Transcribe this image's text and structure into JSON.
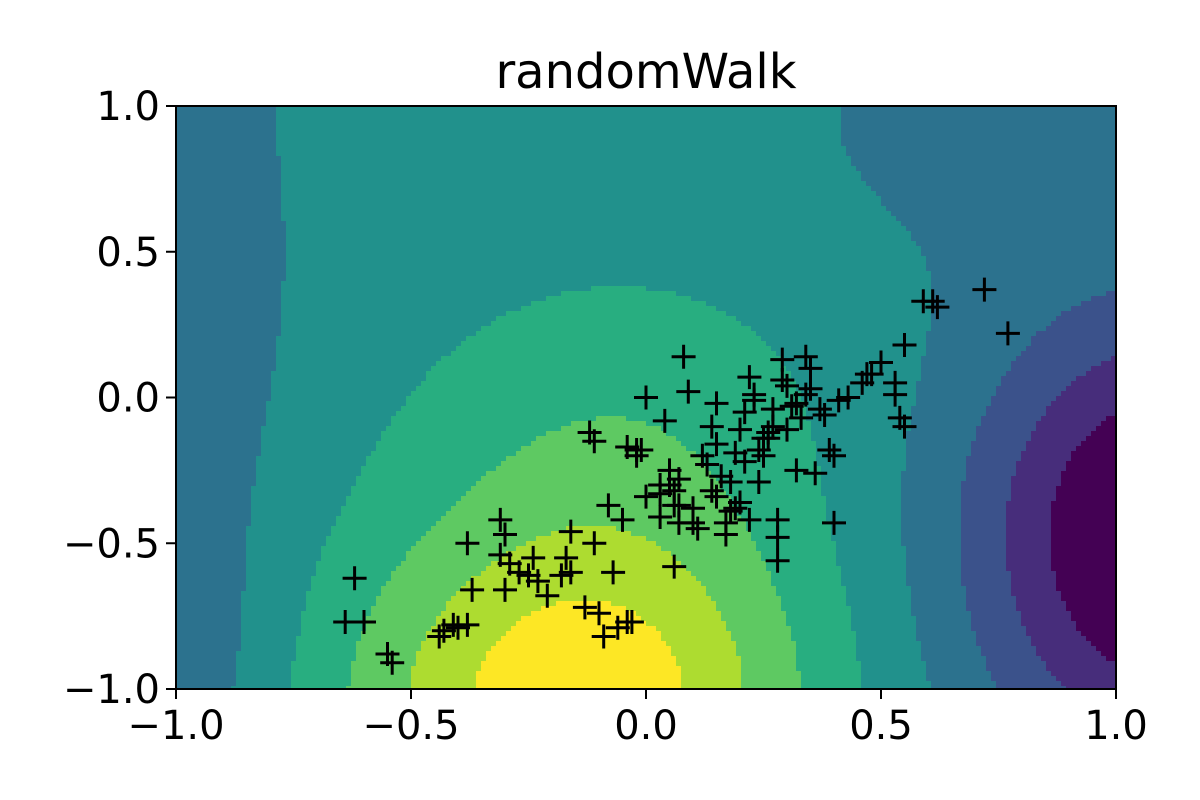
{
  "chart_data": {
    "type": "contour",
    "title": "randomWalk",
    "xlabel": "",
    "ylabel": "",
    "xlim": [
      -1.0,
      1.0
    ],
    "ylim": [
      -1.0,
      1.0
    ],
    "x_ticks": [
      "−1.0",
      "−0.5",
      "0.0",
      "0.5",
      "1.0"
    ],
    "y_ticks": [
      "−1.0",
      "−0.5",
      "0.0",
      "0.5",
      "1.0"
    ],
    "x_tick_values": [
      -1.0,
      -0.5,
      0.0,
      0.5,
      1.0
    ],
    "y_tick_values": [
      -1.0,
      -0.5,
      0.0,
      0.5,
      1.0
    ],
    "grid": false,
    "colormap": "viridis",
    "contour_levels": 9,
    "palette": [
      "#440154",
      "#472d7b",
      "#3b528b",
      "#2c728e",
      "#21918c",
      "#28ae80",
      "#5ec962",
      "#addc30",
      "#fde725"
    ],
    "marker": "+",
    "marker_color": "#000000",
    "points": [
      [
        -0.62,
        -0.62
      ],
      [
        -0.64,
        -0.77
      ],
      [
        -0.6,
        -0.77
      ],
      [
        -0.55,
        -0.88
      ],
      [
        -0.54,
        -0.91
      ],
      [
        -0.43,
        -0.8
      ],
      [
        -0.41,
        -0.78
      ],
      [
        -0.4,
        -0.79
      ],
      [
        -0.38,
        -0.78
      ],
      [
        -0.37,
        -0.66
      ],
      [
        -0.38,
        -0.5
      ],
      [
        -0.31,
        -0.42
      ],
      [
        -0.3,
        -0.47
      ],
      [
        -0.31,
        -0.54
      ],
      [
        -0.29,
        -0.57
      ],
      [
        -0.3,
        -0.66
      ],
      [
        -0.27,
        -0.6
      ],
      [
        -0.25,
        -0.61
      ],
      [
        -0.23,
        -0.63
      ],
      [
        -0.24,
        -0.55
      ],
      [
        -0.21,
        -0.68
      ],
      [
        -0.18,
        -0.61
      ],
      [
        -0.17,
        -0.55
      ],
      [
        -0.16,
        -0.6
      ],
      [
        -0.16,
        -0.46
      ],
      [
        -0.13,
        -0.72
      ],
      [
        -0.11,
        -0.5
      ],
      [
        -0.1,
        -0.74
      ],
      [
        -0.09,
        -0.82
      ],
      [
        -0.07,
        -0.6
      ],
      [
        -0.06,
        -0.79
      ],
      [
        -0.03,
        -0.77
      ],
      [
        -0.08,
        -0.37
      ],
      [
        -0.05,
        -0.42
      ],
      [
        -0.04,
        -0.17
      ],
      [
        -0.02,
        -0.2
      ],
      [
        -0.01,
        -0.18
      ],
      [
        0.0,
        -0.34
      ],
      [
        0.03,
        -0.33
      ],
      [
        0.03,
        -0.41
      ],
      [
        -0.12,
        -0.12
      ],
      [
        -0.11,
        -0.15
      ],
      [
        -0.02,
        -0.18
      ],
      [
        0.0,
        0.0
      ],
      [
        0.04,
        -0.08
      ],
      [
        0.05,
        -0.25
      ],
      [
        0.05,
        -0.3
      ],
      [
        0.06,
        -0.32
      ],
      [
        0.07,
        -0.28
      ],
      [
        0.07,
        -0.37
      ],
      [
        0.07,
        -0.43
      ],
      [
        0.08,
        0.14
      ],
      [
        0.09,
        0.02
      ],
      [
        0.1,
        -0.38
      ],
      [
        0.11,
        -0.45
      ],
      [
        0.12,
        -0.2
      ],
      [
        0.13,
        -0.23
      ],
      [
        0.14,
        -0.32
      ],
      [
        0.14,
        -0.1
      ],
      [
        0.15,
        -0.16
      ],
      [
        0.15,
        -0.02
      ],
      [
        0.16,
        -0.27
      ],
      [
        0.17,
        -0.43
      ],
      [
        0.17,
        -0.47
      ],
      [
        0.18,
        -0.39
      ],
      [
        0.19,
        -0.38
      ],
      [
        0.19,
        -0.19
      ],
      [
        0.2,
        -0.11
      ],
      [
        0.2,
        -0.36
      ],
      [
        0.21,
        -0.22
      ],
      [
        0.21,
        -0.05
      ],
      [
        0.22,
        0.07
      ],
      [
        0.23,
        -0.01
      ],
      [
        0.23,
        0.01
      ],
      [
        0.24,
        -0.18
      ],
      [
        0.24,
        -0.29
      ],
      [
        0.25,
        -0.2
      ],
      [
        0.25,
        -0.14
      ],
      [
        0.26,
        -0.14
      ],
      [
        0.26,
        -0.12
      ],
      [
        0.27,
        -0.1
      ],
      [
        0.27,
        -0.04
      ],
      [
        0.28,
        -0.56
      ],
      [
        0.28,
        -0.42
      ],
      [
        0.28,
        -0.48
      ],
      [
        0.29,
        0.13
      ],
      [
        0.29,
        0.06
      ],
      [
        0.3,
        0.04
      ],
      [
        0.3,
        -0.11
      ],
      [
        0.31,
        -0.03
      ],
      [
        0.32,
        -0.02
      ],
      [
        0.32,
        -0.25
      ],
      [
        0.33,
        -0.07
      ],
      [
        0.34,
        0.01
      ],
      [
        0.34,
        0.14
      ],
      [
        0.35,
        0.1
      ],
      [
        0.35,
        0.03
      ],
      [
        0.36,
        -0.26
      ],
      [
        0.37,
        -0.04
      ],
      [
        0.38,
        -0.06
      ],
      [
        0.39,
        -0.18
      ],
      [
        0.4,
        -0.2
      ],
      [
        0.4,
        -0.43
      ],
      [
        0.41,
        -0.01
      ],
      [
        0.43,
        0.0
      ],
      [
        0.46,
        0.05
      ],
      [
        0.47,
        0.08
      ],
      [
        0.48,
        0.08
      ],
      [
        0.5,
        0.12
      ],
      [
        0.53,
        0.05
      ],
      [
        0.53,
        0.01
      ],
      [
        0.54,
        -0.07
      ],
      [
        0.55,
        -0.1
      ],
      [
        0.55,
        0.18
      ],
      [
        0.59,
        0.33
      ],
      [
        0.61,
        0.33
      ],
      [
        0.62,
        0.31
      ],
      [
        0.72,
        0.37
      ],
      [
        0.77,
        0.22
      ],
      [
        0.06,
        -0.58
      ],
      [
        0.06,
        -0.37
      ],
      [
        -0.04,
        -0.77
      ],
      [
        -0.44,
        -0.82
      ],
      [
        0.1,
        -0.43
      ],
      [
        0.03,
        -0.3
      ],
      [
        0.22,
        -0.42
      ],
      [
        0.15,
        -0.34
      ],
      [
        0.18,
        -0.29
      ]
    ]
  }
}
